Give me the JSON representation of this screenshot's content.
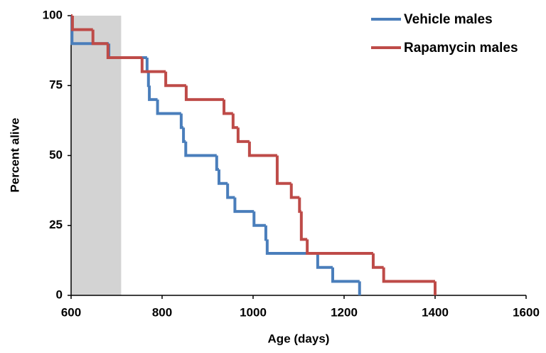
{
  "chart_data": {
    "type": "step",
    "x_label": "Age (days)",
    "y_label": "Percent alive",
    "xlim": [
      600,
      1600
    ],
    "xticks": [
      600,
      800,
      1000,
      1200,
      1400,
      1600
    ],
    "ylim": [
      0,
      100
    ],
    "yticks": [
      0,
      25,
      50,
      75,
      100
    ],
    "shaded_xrange": [
      600,
      710
    ],
    "shade_color": "#d3d3d3",
    "legend": "upper right",
    "series": [
      {
        "name": "Vehicle males",
        "color": "#4a7ebb",
        "x": [
          600,
          602,
          683,
          767,
          770,
          772,
          790,
          842,
          847,
          852,
          920,
          925,
          944,
          960,
          1002,
          1028,
          1031,
          1142,
          1175,
          1234
        ],
        "values": [
          100,
          90,
          85,
          80,
          75,
          70,
          65,
          60,
          55,
          50,
          45,
          40,
          35,
          30,
          25,
          20,
          15,
          10,
          5,
          0
        ]
      },
      {
        "name": "Rapamycin males",
        "color": "#be4b48",
        "x": [
          600,
          603,
          648,
          681,
          756,
          808,
          853,
          936,
          956,
          967,
          992,
          1053,
          1084,
          1102,
          1106,
          1119,
          1264,
          1287,
          1400
        ],
        "values": [
          100,
          95,
          90,
          85,
          80,
          75,
          70,
          65,
          60,
          55,
          50,
          40,
          35,
          30,
          20,
          15,
          10,
          5,
          0
        ]
      }
    ]
  }
}
